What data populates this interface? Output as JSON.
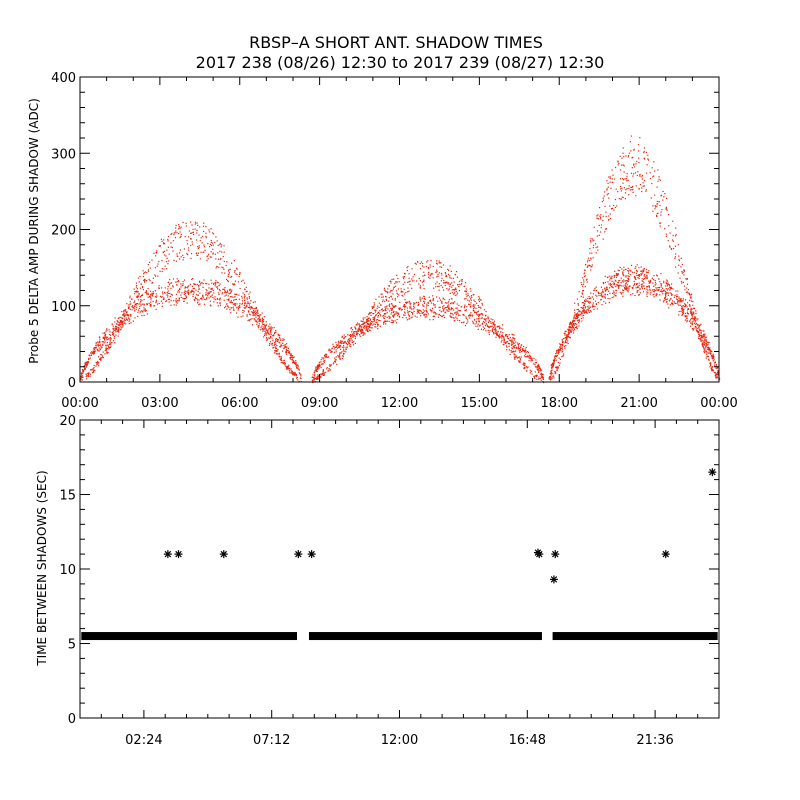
{
  "title_line1": "RBSP–A SHORT ANT. SHADOW TIMES",
  "title_line2": "2017 238 (08/26) 12:30 to 2017 239 (08/27) 12:30",
  "colors": {
    "top_points": "#e8230e",
    "bottom_points": "#000000",
    "axes": "#000000"
  },
  "chart_data": [
    {
      "type": "scatter",
      "ylabel": "Probe 5 DELTA AMP DURING SHADOW (ADC)",
      "xlabel": "",
      "xlim": [
        0,
        24
      ],
      "ylim": [
        0,
        400
      ],
      "x_tick_labels": [
        "00:00",
        "03:00",
        "06:00",
        "09:00",
        "12:00",
        "15:00",
        "18:00",
        "21:00",
        "00:00"
      ],
      "y_tick_labels": [
        "0",
        "100",
        "200",
        "300",
        "400"
      ],
      "grid": false,
      "series_description": "dense cloud of red points",
      "arcs": [
        {
          "x_start": 0.0,
          "x_end": 8.3,
          "lower_band_peak": 130,
          "upper_band_peak": 205,
          "peak_x": 3.9
        },
        {
          "x_start": 8.7,
          "x_end": 17.4,
          "lower_band_peak": 105,
          "upper_band_peak": 155,
          "peak_x": 12.5
        },
        {
          "x_start": 17.6,
          "x_end": 24.0,
          "lower_band_peak": 145,
          "upper_band_peak": 310,
          "peak_x": 22.4
        }
      ]
    },
    {
      "type": "scatter",
      "ylabel": "TIME BETWEEN SHADOWS (SEC)",
      "xlabel": "",
      "xlim": [
        0,
        24
      ],
      "ylim": [
        0,
        20
      ],
      "x_tick_labels": [
        "02:24",
        "07:12",
        "12:00",
        "16:48",
        "21:36"
      ],
      "x_tick_values": [
        2.4,
        7.2,
        12.0,
        16.8,
        21.6
      ],
      "y_tick_labels": [
        "0",
        "5",
        "10",
        "15",
        "20"
      ],
      "grid": false,
      "marker": "*",
      "baseline_value": 5.5,
      "baseline_segments": [
        [
          0.05,
          8.15
        ],
        [
          8.6,
          17.35
        ],
        [
          17.75,
          23.95
        ]
      ],
      "outliers": [
        {
          "x": 3.3,
          "y": 11.0
        },
        {
          "x": 3.7,
          "y": 11.0
        },
        {
          "x": 5.4,
          "y": 11.0
        },
        {
          "x": 8.2,
          "y": 11.0
        },
        {
          "x": 8.7,
          "y": 11.0
        },
        {
          "x": 17.2,
          "y": 11.1
        },
        {
          "x": 17.25,
          "y": 11.0
        },
        {
          "x": 17.85,
          "y": 11.0
        },
        {
          "x": 17.8,
          "y": 9.3
        },
        {
          "x": 22.0,
          "y": 11.0
        },
        {
          "x": 23.75,
          "y": 16.5
        }
      ]
    }
  ]
}
